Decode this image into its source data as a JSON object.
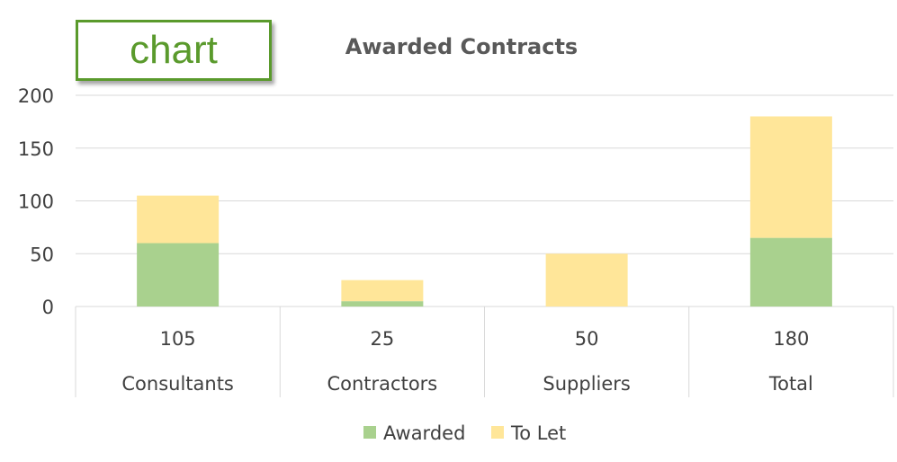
{
  "badge": {
    "label": "chart"
  },
  "colors": {
    "awarded": "#a9d18e",
    "to_let": "#ffe699",
    "badge": "#5a9a2c",
    "gridline": "#d9d9d9",
    "text": "#404040",
    "title": "#595959"
  },
  "chart_data": {
    "type": "bar",
    "stacked": true,
    "title": "Awarded Contracts",
    "categories": [
      "Consultants",
      "Contractors",
      "Suppliers",
      "Total"
    ],
    "category_totals": [
      "105",
      "25",
      "50",
      "180"
    ],
    "series": [
      {
        "name": "Awarded",
        "values": [
          60,
          5,
          0,
          65
        ]
      },
      {
        "name": "To Let",
        "values": [
          45,
          20,
          50,
          115
        ]
      }
    ],
    "ylim": [
      0,
      200
    ],
    "yticks": [
      "0",
      "50",
      "100",
      "150",
      "200"
    ],
    "grid": true,
    "legend": "bottom"
  }
}
